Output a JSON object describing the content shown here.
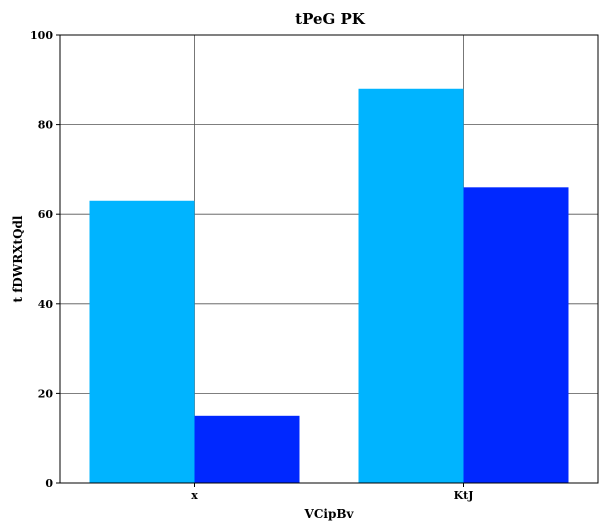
{
  "chart_data": {
    "type": "bar",
    "title": "tPeG PK",
    "xlabel": "VCipBv",
    "ylabel": "t fDWRXtQdl",
    "categories": [
      "x",
      "KtJ"
    ],
    "series": [
      {
        "values": [
          63,
          88
        ],
        "color": "#00b4ff"
      },
      {
        "values": [
          15,
          66
        ],
        "color": "#0028ff"
      }
    ],
    "ylim": [
      0,
      100
    ],
    "yticks": [
      0,
      20,
      40,
      60,
      80,
      100
    ],
    "grid": true,
    "legend": "none"
  }
}
